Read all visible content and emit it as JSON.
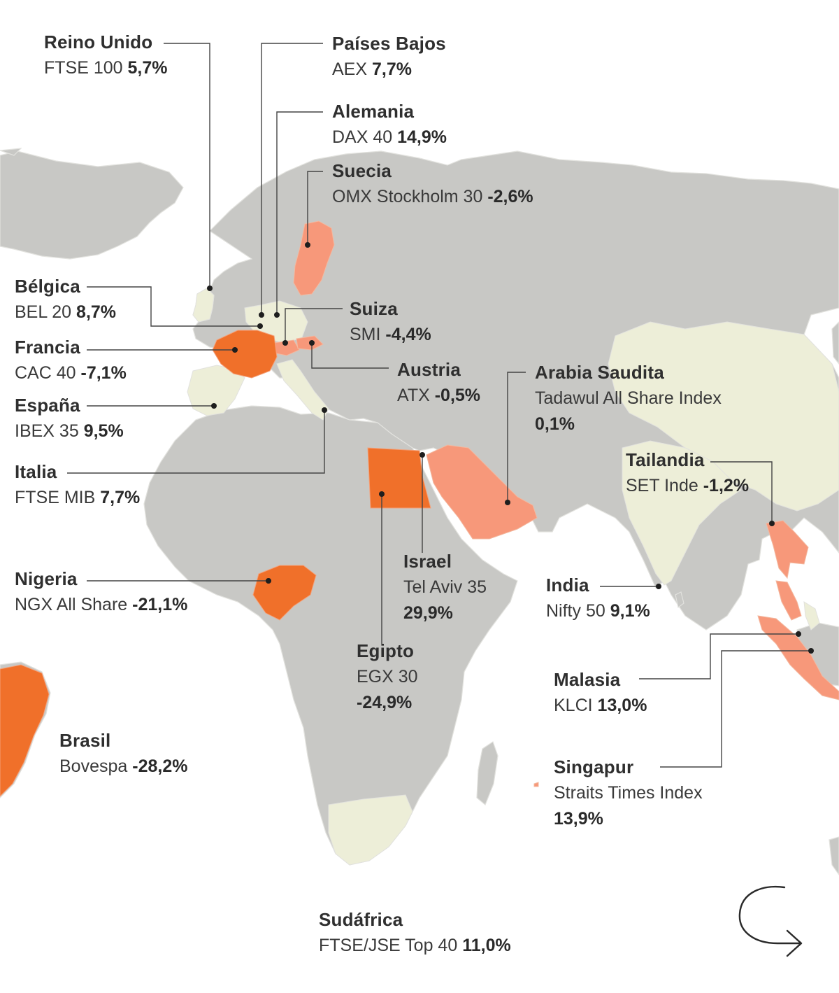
{
  "colors": {
    "land": "#c8c8c5",
    "land_light": "#edeed8",
    "positive_strong": "#f0702a",
    "negative_strong": "#f0702a",
    "light_orange": "#f7987a",
    "border": "#e2e2de",
    "leader": "#444444"
  },
  "markets": [
    {
      "id": "reino-unido",
      "country": "Reino Unido",
      "index": "FTSE 100",
      "value": "5,7%",
      "performance_pct": 5.7
    },
    {
      "id": "paises-bajos",
      "country": "Países Bajos",
      "index": "AEX",
      "value": "7,7%",
      "performance_pct": 7.7
    },
    {
      "id": "alemania",
      "country": "Alemania",
      "index": "DAX 40",
      "value": "14,9%",
      "performance_pct": 14.9
    },
    {
      "id": "suecia",
      "country": "Suecia",
      "index": "OMX Stockholm 30",
      "value": "-2,6%",
      "performance_pct": -2.6
    },
    {
      "id": "belgica",
      "country": "Bélgica",
      "index": "BEL 20",
      "value": "8,7%",
      "performance_pct": 8.7
    },
    {
      "id": "suiza",
      "country": "Suiza",
      "index": "SMI",
      "value": "-4,4%",
      "performance_pct": -4.4
    },
    {
      "id": "francia",
      "country": "Francia",
      "index": "CAC 40",
      "value": "-7,1%",
      "performance_pct": -7.1
    },
    {
      "id": "austria",
      "country": "Austria",
      "index": "ATX",
      "value": "-0,5%",
      "performance_pct": -0.5
    },
    {
      "id": "arabia-saudita",
      "country": "Arabia Saudita",
      "index": "Tadawul All Share Index",
      "value": "0,1%",
      "performance_pct": 0.1
    },
    {
      "id": "espana",
      "country": "España",
      "index": "IBEX 35",
      "value": "9,5%",
      "performance_pct": 9.5
    },
    {
      "id": "tailandia",
      "country": "Tailandia",
      "index": "SET Inde",
      "value": "-1,2%",
      "performance_pct": -1.2
    },
    {
      "id": "italia",
      "country": "Italia",
      "index": "FTSE MIB",
      "value": "7,7%",
      "performance_pct": 7.7
    },
    {
      "id": "israel",
      "country": "Israel",
      "index": "Tel Aviv 35",
      "value": "29,9%",
      "performance_pct": 29.9
    },
    {
      "id": "nigeria",
      "country": "Nigeria",
      "index": "NGX All Share",
      "value": "-21,1%",
      "performance_pct": -21.1
    },
    {
      "id": "india",
      "country": "India",
      "index": "Nifty 50",
      "value": "9,1%",
      "performance_pct": 9.1
    },
    {
      "id": "egipto",
      "country": "Egipto",
      "index": "EGX 30",
      "value": "-24,9%",
      "performance_pct": -24.9
    },
    {
      "id": "malasia",
      "country": "Malasia",
      "index": "KLCI",
      "value": "13,0%",
      "performance_pct": 13.0
    },
    {
      "id": "brasil",
      "country": "Brasil",
      "index": "Bovespa",
      "value": "-28,2%",
      "performance_pct": -28.2
    },
    {
      "id": "singapur",
      "country": "Singapur",
      "index": "Straits Times Index",
      "value": "13,9%",
      "performance_pct": 13.9
    },
    {
      "id": "sudafrica",
      "country": "Sudáfrica",
      "index": "FTSE/JSE Top 40",
      "value": "11,0%",
      "performance_pct": 11.0
    }
  ],
  "nav": {
    "icon": "arrow-right-icon"
  }
}
